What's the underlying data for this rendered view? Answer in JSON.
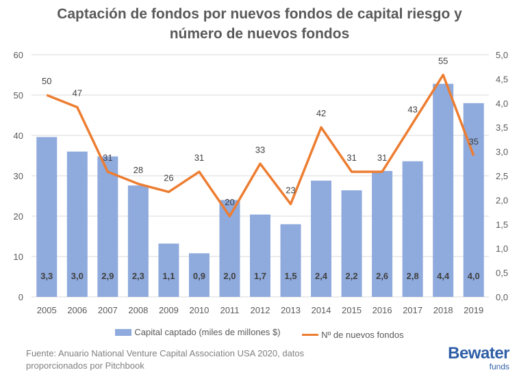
{
  "chart_data": {
    "type": "bar+line",
    "title": "Captación de fondos por nuevos fondos de capital riesgo y número de nuevos fondos",
    "categories": [
      "2005",
      "2006",
      "2007",
      "2008",
      "2009",
      "2010",
      "2011",
      "2012",
      "2013",
      "2014",
      "2015",
      "2016",
      "2017",
      "2018",
      "2019"
    ],
    "series": [
      {
        "name": "Capital captado (miles de millones $)",
        "type": "bar",
        "axis": "right",
        "color": "#8faadc",
        "values": [
          3.3,
          3.0,
          2.9,
          2.3,
          1.1,
          0.9,
          2.0,
          1.7,
          1.5,
          2.4,
          2.2,
          2.6,
          2.8,
          4.4,
          4.0
        ],
        "labels": [
          "3,3",
          "3,0",
          "2,9",
          "2,3",
          "1,1",
          "0,9",
          "2,0",
          "1,7",
          "1,5",
          "2,4",
          "2,2",
          "2,6",
          "2,8",
          "4,4",
          "4,0"
        ]
      },
      {
        "name": "Nº de nuevos fondos",
        "type": "line",
        "axis": "left",
        "color": "#ed7d31",
        "values": [
          50,
          47,
          31,
          28,
          26,
          31,
          20,
          33,
          23,
          42,
          31,
          31,
          43,
          55,
          35
        ]
      }
    ],
    "left_axis": {
      "ylim": [
        0,
        60
      ],
      "ticks": [
        "0",
        "10",
        "20",
        "30",
        "40",
        "50",
        "60"
      ]
    },
    "right_axis": {
      "ylim": [
        0,
        5
      ],
      "ticks": [
        "0,0",
        "0,5",
        "1,0",
        "1,5",
        "2,0",
        "2,5",
        "3,0",
        "3,5",
        "4,0",
        "4,5",
        "5,0"
      ]
    },
    "grid": true,
    "legend_position": "bottom"
  },
  "title_lines": [
    "Captación de fondos por nuevos fondos de capital riesgo y",
    "número de nuevos fondos"
  ],
  "source_lines": [
    "Fuente: Anuario National Venture Capital Association USA 2020, datos",
    "proporcionados por Pitchbook"
  ],
  "logo": {
    "brand": "Bewater",
    "sub": "funds",
    "color": "#2e5ea5"
  }
}
